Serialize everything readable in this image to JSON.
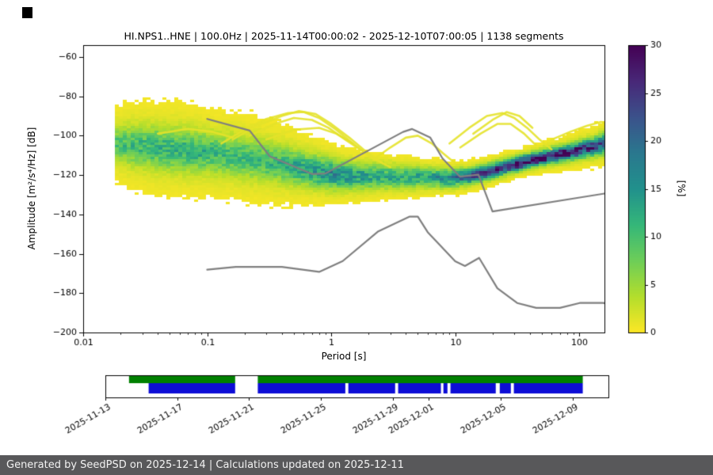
{
  "footer": {
    "text": "Generated by SeedPSD on 2025-12-14 | Calculations updated on 2025-12-11",
    "background": "#58585a",
    "text_color": "#f2f2f2"
  },
  "chart_data": [
    {
      "type": "heatmap",
      "title": "HI.NPS1..HNE | 100.0Hz | 2025-11-14T00:00:02 - 2025-12-10T07:00:05 | 1138 segments",
      "xlabel": "Period [s]",
      "ylabel": "Amplitude [m²/s⁴/Hz] [dB]",
      "xscale": "log",
      "xlim": [
        0.01,
        160
      ],
      "ylim": [
        -200,
        -54
      ],
      "grid": false,
      "xticks": {
        "values": [
          0.01,
          0.1,
          1,
          10,
          100
        ],
        "labels": [
          "0.01",
          "0.1",
          "1",
          "10",
          "100"
        ]
      },
      "yticks": {
        "values": [
          -60,
          -80,
          -100,
          -120,
          -140,
          -160,
          -180,
          -200
        ],
        "labels": [
          "−60",
          "−80",
          "−100",
          "−120",
          "−140",
          "−160",
          "−180",
          "−200"
        ]
      },
      "colorbar": {
        "label": "[%]",
        "min": 0,
        "max": 30,
        "ticks": [
          0,
          5,
          10,
          15,
          20,
          25,
          30
        ],
        "tick_labels": [
          "0",
          "5",
          "10",
          "15",
          "20",
          "25",
          "30"
        ],
        "colormap": "viridis reversed (0%=yellow, 30%=dark purple)",
        "colormap_stops": [
          [
            253,
            231,
            37
          ],
          [
            180,
            222,
            44
          ],
          [
            110,
            206,
            88
          ],
          [
            53,
            183,
            121
          ],
          [
            33,
            145,
            140
          ],
          [
            42,
            120,
            142
          ],
          [
            59,
            82,
            139
          ],
          [
            72,
            40,
            120
          ],
          [
            68,
            1,
            84
          ]
        ]
      },
      "density_profile": {
        "columns": [
          "period_s",
          "center_db",
          "sigma_db",
          "peak_percent",
          "halo_sigma_db",
          "halo_percent"
        ],
        "rows": [
          [
            0.018,
            -104.0,
            5.0,
            8,
            11,
            2.5
          ],
          [
            0.025,
            -105.0,
            6.0,
            9,
            13,
            2.5
          ],
          [
            0.04,
            -106.0,
            6.5,
            10,
            14,
            2.5
          ],
          [
            0.07,
            -107.5,
            6.5,
            10,
            14,
            2.5
          ],
          [
            0.1,
            -108.5,
            6.0,
            10,
            13,
            2.5
          ],
          [
            0.16,
            -110.0,
            6.0,
            9,
            13,
            2.5
          ],
          [
            0.25,
            -112.0,
            6.0,
            9,
            13,
            2.5
          ],
          [
            0.4,
            -114.5,
            5.5,
            10,
            12,
            2.5
          ],
          [
            0.7,
            -117.5,
            5.0,
            13,
            10,
            2.5
          ],
          [
            1.0,
            -119.5,
            4.5,
            15,
            9,
            2.5
          ],
          [
            1.6,
            -120.5,
            4.0,
            13,
            8,
            2.2
          ],
          [
            2.5,
            -120.5,
            3.8,
            11,
            7,
            2.2
          ],
          [
            4.0,
            -121.0,
            3.5,
            11,
            6.5,
            2.0
          ],
          [
            6.0,
            -121.0,
            3.0,
            13,
            6,
            2.0
          ],
          [
            9.0,
            -121.5,
            2.8,
            16,
            5.5,
            2.0
          ],
          [
            13,
            -120.5,
            2.5,
            20,
            5,
            2.0
          ],
          [
            20,
            -117.5,
            2.3,
            26,
            5,
            2.0
          ],
          [
            30,
            -114.5,
            2.2,
            29,
            5,
            2.0
          ],
          [
            50,
            -111.0,
            2.2,
            30,
            5,
            2.0
          ],
          [
            80,
            -108.5,
            2.4,
            28,
            5.5,
            2.2
          ],
          [
            120,
            -106.0,
            2.6,
            26,
            6,
            2.5
          ],
          [
            160,
            -104.0,
            3.0,
            23,
            7,
            2.5
          ]
        ]
      },
      "storm_curves": [
        [
          [
            0.13,
            -104
          ],
          [
            0.2,
            -97
          ],
          [
            0.3,
            -91.5
          ],
          [
            0.45,
            -88.5
          ],
          [
            0.6,
            -88
          ],
          [
            0.8,
            -91
          ],
          [
            1.1,
            -97
          ],
          [
            1.5,
            -104
          ],
          [
            2.1,
            -111
          ],
          [
            3,
            -116
          ]
        ],
        [
          [
            0.16,
            -102
          ],
          [
            0.25,
            -95
          ],
          [
            0.4,
            -90
          ],
          [
            0.55,
            -87.5
          ],
          [
            0.75,
            -89
          ],
          [
            1.0,
            -94
          ],
          [
            1.4,
            -101
          ],
          [
            1.9,
            -108
          ],
          [
            2.6,
            -114
          ]
        ],
        [
          [
            0.22,
            -100
          ],
          [
            0.35,
            -94
          ],
          [
            0.5,
            -91
          ],
          [
            0.7,
            -92
          ],
          [
            0.95,
            -96
          ],
          [
            1.3,
            -102
          ],
          [
            1.8,
            -108
          ]
        ],
        [
          [
            0.3,
            -102
          ],
          [
            0.5,
            -97
          ],
          [
            0.8,
            -96
          ],
          [
            1.1,
            -99
          ],
          [
            1.5,
            -104
          ]
        ],
        [
          [
            2.2,
            -112
          ],
          [
            3,
            -106
          ],
          [
            4,
            -101
          ],
          [
            5,
            -100
          ],
          [
            6.5,
            -104
          ],
          [
            8,
            -109
          ],
          [
            10,
            -114
          ]
        ],
        [
          [
            9,
            -104
          ],
          [
            13,
            -96
          ],
          [
            18,
            -90
          ],
          [
            24,
            -88.5
          ],
          [
            30,
            -91
          ],
          [
            38,
            -96
          ],
          [
            48,
            -102
          ],
          [
            60,
            -107
          ]
        ],
        [
          [
            11,
            -106
          ],
          [
            16,
            -99
          ],
          [
            22,
            -94
          ],
          [
            28,
            -94
          ],
          [
            36,
            -99
          ],
          [
            45,
            -105
          ]
        ],
        [
          [
            14,
            -99
          ],
          [
            20,
            -92
          ],
          [
            26,
            -88
          ],
          [
            33,
            -90
          ],
          [
            42,
            -96
          ]
        ],
        [
          [
            60,
            -102
          ],
          [
            85,
            -98
          ],
          [
            115,
            -95
          ],
          [
            150,
            -93
          ],
          [
            175,
            -94
          ]
        ],
        [
          [
            0.04,
            -99
          ],
          [
            0.07,
            -96.5
          ],
          [
            0.11,
            -98
          ],
          [
            0.16,
            -101
          ]
        ]
      ],
      "noise_models": {
        "color": "#7f7f7f",
        "high_noise_model": [
          [
            0.1,
            -91.5
          ],
          [
            0.22,
            -97.4
          ],
          [
            0.32,
            -110.5
          ],
          [
            0.7,
            -119.5
          ],
          [
            0.9,
            -119.2
          ],
          [
            3.8,
            -98.1
          ],
          [
            4.5,
            -96.6
          ],
          [
            6.3,
            -101.0
          ],
          [
            7.9,
            -111.5
          ],
          [
            10.9,
            -120.8
          ],
          [
            15.4,
            -119.8
          ],
          [
            20,
            -138.5
          ],
          [
            180,
            -128.9
          ]
        ],
        "low_noise_model": [
          [
            0.1,
            -168.1
          ],
          [
            0.17,
            -166.7
          ],
          [
            0.4,
            -166.7
          ],
          [
            0.8,
            -169.2
          ],
          [
            1.24,
            -163.7
          ],
          [
            2.4,
            -148.6
          ],
          [
            4.3,
            -141.1
          ],
          [
            5.0,
            -141.1
          ],
          [
            6.0,
            -149.0
          ],
          [
            10.0,
            -163.8
          ],
          [
            12.0,
            -166.2
          ],
          [
            15.6,
            -162.1
          ],
          [
            21.9,
            -177.5
          ],
          [
            31.6,
            -185.0
          ],
          [
            45.0,
            -187.5
          ],
          [
            70.0,
            -187.5
          ],
          [
            101.0,
            -185.0
          ],
          [
            154.0,
            -185.0
          ],
          [
            180.0,
            -185.3
          ]
        ]
      }
    },
    {
      "type": "timeline",
      "rows": [
        {
          "name": "psd-coverage",
          "color": "#008000",
          "segments": [
            [
              0.047,
              0.258
            ],
            [
              0.303,
              0.949
            ]
          ]
        },
        {
          "name": "data-availability",
          "color": "#0d0dd6",
          "segments": [
            [
              0.086,
              0.258
            ],
            [
              0.303,
              0.477
            ],
            [
              0.483,
              0.576
            ],
            [
              0.582,
              0.667
            ],
            [
              0.672,
              0.68
            ],
            [
              0.686,
              0.776
            ],
            [
              0.784,
              0.806
            ],
            [
              0.812,
              0.949
            ]
          ]
        }
      ],
      "xticks": {
        "fractions": [
          0,
          0.1429,
          0.2857,
          0.4286,
          0.5714,
          0.6429,
          0.7857,
          0.9286
        ],
        "labels": [
          "2025-11-13",
          "2025-11-17",
          "2025-11-21",
          "2025-11-25",
          "2025-11-29",
          "2025-12-01",
          "2025-12-05",
          "2025-12-09"
        ]
      }
    }
  ]
}
